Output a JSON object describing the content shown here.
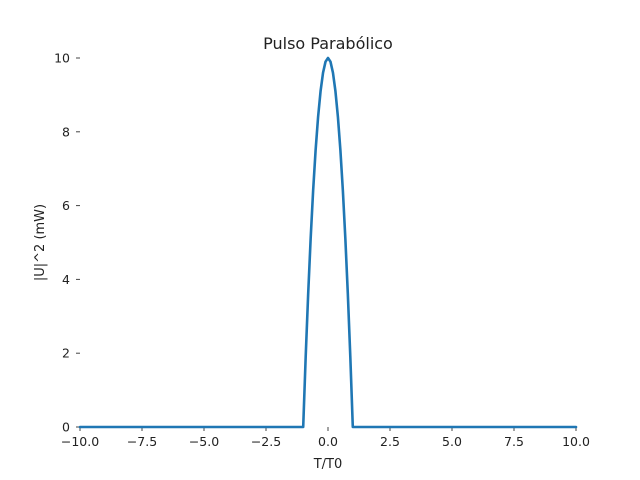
{
  "chart_data": {
    "type": "line",
    "title": "Pulso Parabólico",
    "xlabel": "T/T0",
    "ylabel": "|U|^2 (mW)",
    "xlim": [
      -10.0,
      10.0
    ],
    "ylim": [
      0,
      10
    ],
    "x_ticks": [
      "−10.0",
      "−7.5",
      "−5.0",
      "−2.5",
      "0.0",
      "2.5",
      "5.0",
      "7.5",
      "10.0"
    ],
    "x_tick_values": [
      -10.0,
      -7.5,
      -5.0,
      -2.5,
      0.0,
      2.5,
      5.0,
      7.5,
      10.0
    ],
    "y_ticks": [
      "0",
      "2",
      "4",
      "6",
      "8",
      "10"
    ],
    "y_tick_values": [
      0,
      2,
      4,
      6,
      8,
      10
    ],
    "grid": false,
    "series": [
      {
        "color": "#1f77b4",
        "x": [
          -10.0,
          -1.0,
          -0.9,
          -0.8,
          -0.7,
          -0.6,
          -0.5,
          -0.4,
          -0.3,
          -0.2,
          -0.1,
          0.0,
          0.1,
          0.2,
          0.3,
          0.4,
          0.5,
          0.6,
          0.7,
          0.8,
          0.9,
          1.0,
          10.0
        ],
        "y": [
          0.0,
          0.0,
          1.9,
          3.6,
          5.1,
          6.4,
          7.5,
          8.4,
          9.1,
          9.6,
          9.9,
          10.0,
          9.9,
          9.6,
          9.1,
          8.4,
          7.5,
          6.4,
          5.1,
          3.6,
          1.9,
          0.0,
          0.0
        ]
      }
    ]
  }
}
